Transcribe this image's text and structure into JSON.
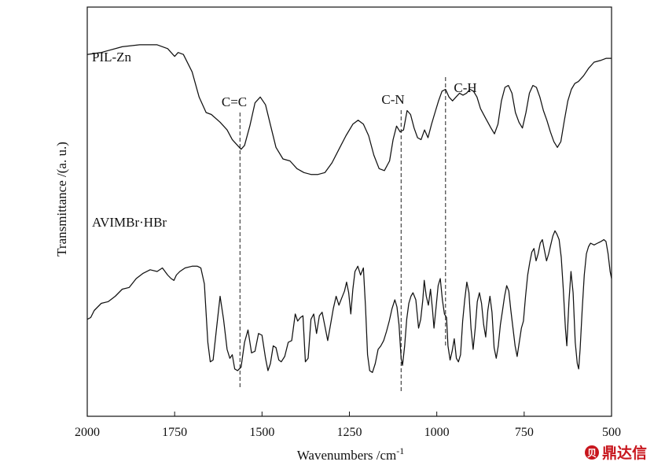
{
  "chart_data": {
    "type": "line",
    "xlabel": "Wavenumbers /cm",
    "xlabel_superscript": "-1",
    "ylabel": "Transmittance /(a. u.)",
    "xlim": [
      2000,
      500
    ],
    "x_reversed": true,
    "y_ticks_shown": false,
    "grid": false,
    "x_ticks": [
      2000,
      1750,
      1500,
      1250,
      1000,
      750,
      500
    ],
    "series": [
      {
        "name": "PIL-Zn",
        "y_unit": "arbitrary (0-100)",
        "points": [
          [
            2000,
            80
          ],
          [
            1960,
            81
          ],
          [
            1900,
            84
          ],
          [
            1850,
            85
          ],
          [
            1800,
            85
          ],
          [
            1770,
            83
          ],
          [
            1750,
            79
          ],
          [
            1740,
            81
          ],
          [
            1725,
            80
          ],
          [
            1700,
            71
          ],
          [
            1680,
            58
          ],
          [
            1660,
            50
          ],
          [
            1645,
            49
          ],
          [
            1620,
            45
          ],
          [
            1600,
            41
          ],
          [
            1585,
            36
          ],
          [
            1570,
            33
          ],
          [
            1560,
            31
          ],
          [
            1550,
            33
          ],
          [
            1535,
            43
          ],
          [
            1520,
            55
          ],
          [
            1505,
            58
          ],
          [
            1490,
            54
          ],
          [
            1475,
            43
          ],
          [
            1460,
            32
          ],
          [
            1440,
            26
          ],
          [
            1420,
            25
          ],
          [
            1400,
            21
          ],
          [
            1380,
            19
          ],
          [
            1360,
            18
          ],
          [
            1340,
            18
          ],
          [
            1320,
            19
          ],
          [
            1300,
            24
          ],
          [
            1280,
            31
          ],
          [
            1260,
            38
          ],
          [
            1240,
            44
          ],
          [
            1225,
            46
          ],
          [
            1210,
            44
          ],
          [
            1195,
            38
          ],
          [
            1180,
            28
          ],
          [
            1165,
            21
          ],
          [
            1150,
            20
          ],
          [
            1135,
            25
          ],
          [
            1125,
            36
          ],
          [
            1115,
            43
          ],
          [
            1105,
            40
          ],
          [
            1095,
            41
          ],
          [
            1085,
            51
          ],
          [
            1075,
            49
          ],
          [
            1065,
            42
          ],
          [
            1055,
            37
          ],
          [
            1045,
            36
          ],
          [
            1035,
            41
          ],
          [
            1025,
            37
          ],
          [
            1015,
            44
          ],
          [
            1005,
            50
          ],
          [
            995,
            56
          ],
          [
            985,
            61
          ],
          [
            975,
            62
          ],
          [
            965,
            58
          ],
          [
            955,
            56
          ],
          [
            945,
            58
          ],
          [
            935,
            60
          ],
          [
            925,
            59
          ],
          [
            915,
            60
          ],
          [
            905,
            62
          ],
          [
            895,
            61
          ],
          [
            885,
            58
          ],
          [
            875,
            52
          ],
          [
            860,
            47
          ],
          [
            845,
            42
          ],
          [
            835,
            39
          ],
          [
            825,
            44
          ],
          [
            815,
            56
          ],
          [
            805,
            63
          ],
          [
            795,
            64
          ],
          [
            785,
            60
          ],
          [
            775,
            50
          ],
          [
            765,
            45
          ],
          [
            755,
            42
          ],
          [
            745,
            50
          ],
          [
            735,
            60
          ],
          [
            725,
            64
          ],
          [
            715,
            63
          ],
          [
            705,
            58
          ],
          [
            695,
            51
          ],
          [
            685,
            46
          ],
          [
            675,
            40
          ],
          [
            665,
            35
          ],
          [
            655,
            32
          ],
          [
            645,
            35
          ],
          [
            635,
            46
          ],
          [
            625,
            56
          ],
          [
            615,
            62
          ],
          [
            605,
            65
          ],
          [
            595,
            66
          ],
          [
            580,
            69
          ],
          [
            565,
            73
          ],
          [
            550,
            76
          ],
          [
            530,
            77
          ],
          [
            515,
            78
          ],
          [
            500,
            78
          ]
        ]
      },
      {
        "name": "AVIMBr·HBr",
        "y_unit": "arbitrary (0-100)",
        "points": [
          [
            2000,
            25
          ],
          [
            1990,
            26
          ],
          [
            1980,
            30
          ],
          [
            1960,
            34
          ],
          [
            1940,
            35
          ],
          [
            1920,
            38
          ],
          [
            1900,
            42
          ],
          [
            1880,
            43
          ],
          [
            1860,
            48
          ],
          [
            1840,
            51
          ],
          [
            1820,
            53
          ],
          [
            1800,
            52
          ],
          [
            1785,
            54
          ],
          [
            1770,
            50
          ],
          [
            1760,
            48
          ],
          [
            1752,
            47
          ],
          [
            1745,
            50
          ],
          [
            1735,
            52
          ],
          [
            1720,
            54
          ],
          [
            1700,
            55
          ],
          [
            1685,
            55
          ],
          [
            1675,
            54
          ],
          [
            1665,
            45
          ],
          [
            1655,
            12
          ],
          [
            1648,
            1
          ],
          [
            1640,
            2
          ],
          [
            1630,
            20
          ],
          [
            1620,
            38
          ],
          [
            1610,
            25
          ],
          [
            1600,
            8
          ],
          [
            1592,
            3
          ],
          [
            1585,
            5
          ],
          [
            1578,
            -3
          ],
          [
            1570,
            -4
          ],
          [
            1560,
            -2
          ],
          [
            1550,
            12
          ],
          [
            1540,
            19
          ],
          [
            1530,
            6
          ],
          [
            1520,
            7
          ],
          [
            1510,
            17
          ],
          [
            1500,
            16
          ],
          [
            1490,
            3
          ],
          [
            1483,
            -4
          ],
          [
            1476,
            0
          ],
          [
            1468,
            10
          ],
          [
            1460,
            9
          ],
          [
            1452,
            2
          ],
          [
            1445,
            1
          ],
          [
            1435,
            4
          ],
          [
            1425,
            12
          ],
          [
            1415,
            13
          ],
          [
            1405,
            28
          ],
          [
            1398,
            24
          ],
          [
            1390,
            26
          ],
          [
            1383,
            27
          ],
          [
            1376,
            1
          ],
          [
            1368,
            3
          ],
          [
            1360,
            25
          ],
          [
            1352,
            28
          ],
          [
            1344,
            17
          ],
          [
            1336,
            27
          ],
          [
            1328,
            29
          ],
          [
            1320,
            21
          ],
          [
            1312,
            13
          ],
          [
            1304,
            22
          ],
          [
            1296,
            31
          ],
          [
            1288,
            38
          ],
          [
            1280,
            33
          ],
          [
            1272,
            37
          ],
          [
            1264,
            41
          ],
          [
            1258,
            46
          ],
          [
            1252,
            40
          ],
          [
            1246,
            28
          ],
          [
            1240,
            42
          ],
          [
            1234,
            52
          ],
          [
            1226,
            55
          ],
          [
            1218,
            50
          ],
          [
            1210,
            54
          ],
          [
            1204,
            32
          ],
          [
            1198,
            5
          ],
          [
            1192,
            -4
          ],
          [
            1184,
            -5
          ],
          [
            1176,
            0
          ],
          [
            1168,
            8
          ],
          [
            1160,
            10
          ],
          [
            1152,
            13
          ],
          [
            1144,
            18
          ],
          [
            1136,
            24
          ],
          [
            1128,
            31
          ],
          [
            1120,
            36
          ],
          [
            1114,
            32
          ],
          [
            1108,
            22
          ],
          [
            1102,
            3
          ],
          [
            1098,
            -1
          ],
          [
            1092,
            10
          ],
          [
            1086,
            25
          ],
          [
            1080,
            34
          ],
          [
            1074,
            38
          ],
          [
            1068,
            40
          ],
          [
            1060,
            36
          ],
          [
            1052,
            20
          ],
          [
            1046,
            25
          ],
          [
            1040,
            36
          ],
          [
            1036,
            47
          ],
          [
            1030,
            38
          ],
          [
            1024,
            33
          ],
          [
            1018,
            42
          ],
          [
            1012,
            30
          ],
          [
            1008,
            20
          ],
          [
            1002,
            32
          ],
          [
            996,
            44
          ],
          [
            990,
            48
          ],
          [
            984,
            36
          ],
          [
            978,
            28
          ],
          [
            972,
            26
          ],
          [
            968,
            10
          ],
          [
            962,
            2
          ],
          [
            956,
            7
          ],
          [
            950,
            14
          ],
          [
            944,
            3
          ],
          [
            938,
            1
          ],
          [
            932,
            5
          ],
          [
            926,
            24
          ],
          [
            920,
            36
          ],
          [
            914,
            46
          ],
          [
            908,
            40
          ],
          [
            902,
            20
          ],
          [
            896,
            8
          ],
          [
            890,
            20
          ],
          [
            884,
            35
          ],
          [
            878,
            40
          ],
          [
            872,
            34
          ],
          [
            866,
            22
          ],
          [
            860,
            15
          ],
          [
            854,
            30
          ],
          [
            848,
            38
          ],
          [
            842,
            29
          ],
          [
            836,
            9
          ],
          [
            830,
            3
          ],
          [
            824,
            10
          ],
          [
            818,
            22
          ],
          [
            812,
            30
          ],
          [
            806,
            38
          ],
          [
            800,
            44
          ],
          [
            794,
            41
          ],
          [
            788,
            30
          ],
          [
            782,
            20
          ],
          [
            776,
            10
          ],
          [
            770,
            4
          ],
          [
            764,
            12
          ],
          [
            758,
            20
          ],
          [
            752,
            24
          ],
          [
            746,
            38
          ],
          [
            740,
            50
          ],
          [
            734,
            57
          ],
          [
            728,
            63
          ],
          [
            722,
            65
          ],
          [
            716,
            58
          ],
          [
            710,
            62
          ],
          [
            704,
            68
          ],
          [
            698,
            70
          ],
          [
            692,
            64
          ],
          [
            686,
            58
          ],
          [
            680,
            62
          ],
          [
            674,
            67
          ],
          [
            668,
            72
          ],
          [
            662,
            75
          ],
          [
            656,
            73
          ],
          [
            650,
            70
          ],
          [
            644,
            60
          ],
          [
            638,
            42
          ],
          [
            632,
            20
          ],
          [
            628,
            10
          ],
          [
            622,
            35
          ],
          [
            616,
            52
          ],
          [
            610,
            40
          ],
          [
            604,
            12
          ],
          [
            598,
            0
          ],
          [
            594,
            -3
          ],
          [
            590,
            8
          ],
          [
            584,
            30
          ],
          [
            578,
            50
          ],
          [
            572,
            62
          ],
          [
            566,
            66
          ],
          [
            560,
            68
          ],
          [
            550,
            67
          ],
          [
            540,
            68
          ],
          [
            530,
            69
          ],
          [
            522,
            70
          ],
          [
            516,
            69
          ],
          [
            510,
            62
          ],
          [
            504,
            52
          ],
          [
            500,
            48
          ]
        ]
      }
    ],
    "annotations": [
      {
        "label": "C=C",
        "x": 1563
      },
      {
        "label": "C-N",
        "x": 1102
      },
      {
        "label": "C-H",
        "x": 975
      }
    ]
  },
  "watermark": {
    "brand": "鼎达信",
    "badge": "贝",
    "color": "#c8161d"
  }
}
